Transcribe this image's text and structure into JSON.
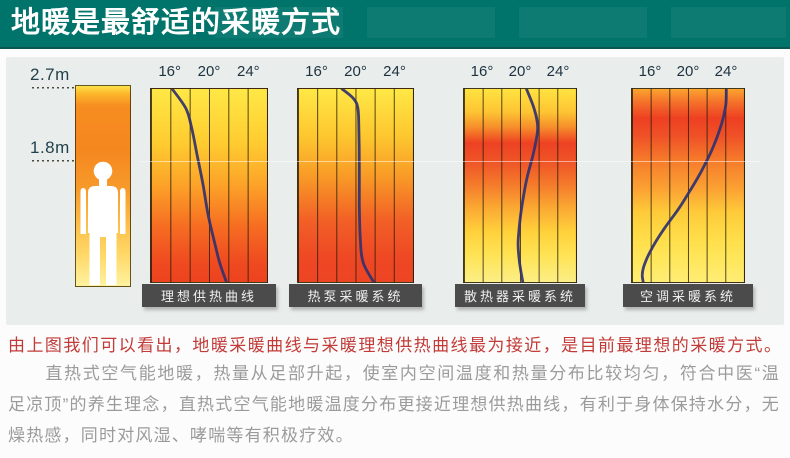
{
  "header": {
    "title": "地暖是最舒适的采暖方式"
  },
  "panel": {
    "height_marks": [
      {
        "label": "2.7m"
      },
      {
        "label": "1.8m"
      }
    ]
  },
  "figure": {
    "person_color": "#ffffff",
    "gradient": [
      [
        0,
        "#ffe24a"
      ],
      [
        0.04,
        "#fcb62b"
      ],
      [
        0.1,
        "#f68d20"
      ],
      [
        0.32,
        "#f5871f"
      ],
      [
        0.52,
        "#f79b2b"
      ],
      [
        0.7,
        "#fcc04a"
      ],
      [
        0.85,
        "#ffd96a"
      ],
      [
        1,
        "#fff2a0"
      ]
    ]
  },
  "charts": [
    {
      "label": "理想供热曲线",
      "ticks": [
        "16°",
        "20°",
        "24°"
      ]
    },
    {
      "label": "热泵采暖系统",
      "ticks": [
        "16°",
        "20°",
        "24°"
      ]
    },
    {
      "label": "散热器采暖系统",
      "ticks": [
        "16°",
        "20°",
        "24°"
      ]
    },
    {
      "label": "空调采暖系统",
      "ticks": [
        "16°",
        "20°",
        "24°"
      ]
    }
  ],
  "chart_data": [
    {
      "type": "line",
      "title": "理想供热曲线",
      "x_range": [
        14,
        26
      ],
      "x_ticks": [
        16,
        20,
        24
      ],
      "y_axis": "room height fraction (0 = ceiling 2.7m, 1 = floor)",
      "curve_temp_by_height": [
        [
          0,
          16.2
        ],
        [
          0.1,
          17.6
        ],
        [
          0.2,
          18.2
        ],
        [
          0.35,
          18.8
        ],
        [
          0.5,
          19.4
        ],
        [
          0.65,
          19.9
        ],
        [
          0.8,
          20.6
        ],
        [
          0.9,
          21.1
        ],
        [
          1,
          21.8
        ]
      ],
      "gradient": [
        [
          0,
          "#ffe846"
        ],
        [
          0.28,
          "#ffcc30"
        ],
        [
          0.5,
          "#fca228"
        ],
        [
          0.72,
          "#f66b22"
        ],
        [
          0.9,
          "#ef4a20"
        ],
        [
          1,
          "#ed431f"
        ]
      ]
    },
    {
      "type": "line",
      "title": "热泵采暖系统",
      "x_range": [
        14,
        26
      ],
      "x_ticks": [
        16,
        20,
        24
      ],
      "y_axis": "room height fraction (0 = ceiling 2.7m, 1 = floor)",
      "curve_temp_by_height": [
        [
          0,
          18.6
        ],
        [
          0.05,
          19.8
        ],
        [
          0.1,
          20.25
        ],
        [
          0.2,
          20.35
        ],
        [
          0.4,
          20.4
        ],
        [
          0.6,
          20.4
        ],
        [
          0.78,
          20.5
        ],
        [
          0.9,
          20.8
        ],
        [
          1,
          21.9
        ]
      ],
      "gradient": [
        [
          0,
          "#ffe846"
        ],
        [
          0.25,
          "#fdc62f"
        ],
        [
          0.45,
          "#f99b27"
        ],
        [
          0.68,
          "#f26026"
        ],
        [
          0.88,
          "#ee4724"
        ],
        [
          1,
          "#ed4524"
        ]
      ]
    },
    {
      "type": "line",
      "title": "散热器采暖系统",
      "x_range": [
        14,
        26
      ],
      "x_ticks": [
        16,
        20,
        24
      ],
      "y_axis": "room height fraction (0 = ceiling 2.7m, 1 = floor)",
      "curve_temp_by_height": [
        [
          0,
          20.7
        ],
        [
          0.1,
          21.5
        ],
        [
          0.2,
          21.9
        ],
        [
          0.32,
          21.5
        ],
        [
          0.45,
          20.8
        ],
        [
          0.55,
          20.4
        ],
        [
          0.68,
          20.0
        ],
        [
          0.8,
          19.8
        ],
        [
          0.9,
          19.95
        ],
        [
          1,
          20.3
        ]
      ],
      "gradient": [
        [
          0,
          "#ffe340"
        ],
        [
          0.12,
          "#fdc433"
        ],
        [
          0.2,
          "#f68c2a"
        ],
        [
          0.28,
          "#ee4123"
        ],
        [
          0.38,
          "#ef5527"
        ],
        [
          0.5,
          "#f57c2b"
        ],
        [
          0.62,
          "#fbaa33"
        ],
        [
          0.74,
          "#ffd13b"
        ],
        [
          0.86,
          "#ffe354"
        ],
        [
          1,
          "#fcee86"
        ]
      ]
    },
    {
      "type": "line",
      "title": "空调采暖系统",
      "x_range": [
        14,
        26
      ],
      "x_ticks": [
        16,
        20,
        24
      ],
      "y_axis": "room height fraction (0 = ceiling 2.7m, 1 = floor)",
      "curve_temp_by_height": [
        [
          0,
          24.1
        ],
        [
          0.08,
          24.05
        ],
        [
          0.18,
          23.6
        ],
        [
          0.3,
          22.7
        ],
        [
          0.42,
          21.5
        ],
        [
          0.52,
          20.3
        ],
        [
          0.62,
          19.0
        ],
        [
          0.72,
          17.5
        ],
        [
          0.82,
          16.2
        ],
        [
          0.9,
          15.4
        ],
        [
          0.96,
          15.1
        ],
        [
          1,
          15.2
        ]
      ],
      "gradient": [
        [
          0,
          "#fba42f"
        ],
        [
          0.07,
          "#f4702a"
        ],
        [
          0.15,
          "#ee4022"
        ],
        [
          0.24,
          "#ef5026"
        ],
        [
          0.38,
          "#f67e2c"
        ],
        [
          0.52,
          "#fba233"
        ],
        [
          0.64,
          "#fecb39"
        ],
        [
          0.78,
          "#ffde4a"
        ],
        [
          0.9,
          "#ffe85f"
        ],
        [
          1,
          "#ffec74"
        ]
      ]
    }
  ],
  "notes": {
    "highlight": "由上图我们可以看出，地暖采暖曲线与采暖理想供热曲线最为接近，是目前最理想的采暖方式。",
    "body": "直热式空气能地暖，热量从足部升起，使室内空间温度和热量分布比较均匀，符合中医“温足凉顶”的养生理念，直热式空气能地暖温度分布更接近理想供热曲线，有利于身体保持水分，无燥热感，同时对风湿、哮喘等有积极疗效。"
  },
  "colors": {
    "header_bg": "#00736b",
    "panel_bg": "#e9edec",
    "page_bg": "#fbfcfb",
    "caption_bg": "#4b4b4b",
    "curve": "#32326e",
    "highlight_text": "#c23b38",
    "body_text": "#9b9b9b",
    "tick_text": "#1e3240"
  }
}
